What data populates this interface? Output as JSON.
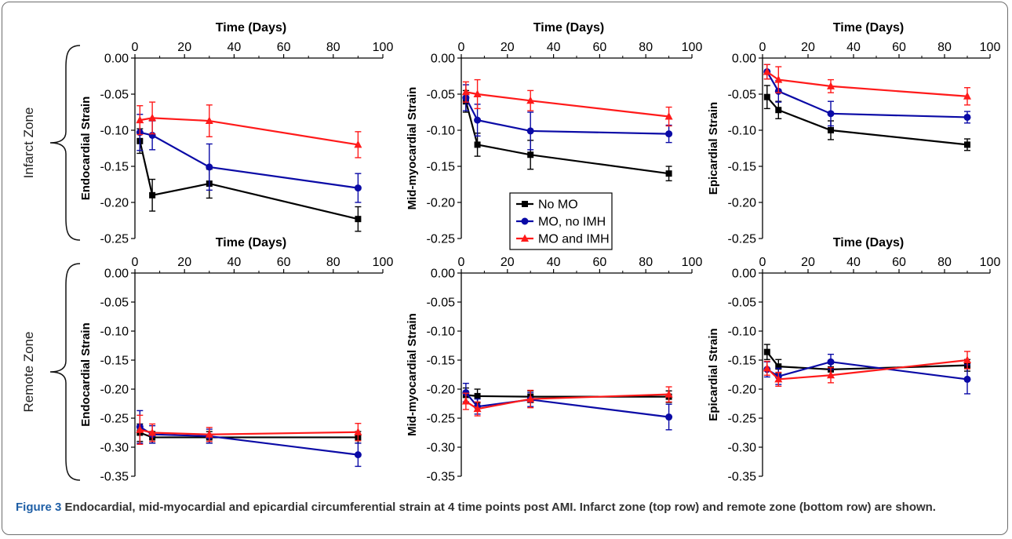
{
  "caption": {
    "label": "Figure 3",
    "text": "Endocardial, mid-myocardial and epicardial circumferential strain at 4 time points post AMI. Infarct zone (top row) and remote zone (bottom row) are shown."
  },
  "zones": [
    "Infarct Zone",
    "Remote Zone"
  ],
  "legend": [
    "No MO",
    "MO, no IMH",
    "MO and IMH"
  ],
  "colors": {
    "No MO": "#000000",
    "MO, no IMH": "#0a0aa6",
    "MO and IMH": "#ff1a1a"
  },
  "chart_data": [
    {
      "type": "line",
      "zone": "Infarct Zone",
      "xlabel": "Time (Days)",
      "ylabel": "Endocardial Strain",
      "xlim": [
        0,
        100
      ],
      "ylim": [
        -0.25,
        0
      ],
      "xticks": [
        "0",
        "20",
        "40",
        "60",
        "80",
        "100"
      ],
      "yticks": [
        "0.00",
        "-0.05",
        "-0.10",
        "-0.15",
        "-0.20",
        "-0.25"
      ],
      "x": [
        2,
        7,
        30,
        90
      ],
      "series": [
        {
          "name": "No MO",
          "marker": "square",
          "values": [
            -0.115,
            -0.19,
            -0.174,
            -0.223
          ],
          "errors": [
            0.017,
            0.022,
            0.02,
            0.017
          ]
        },
        {
          "name": "MO, no IMH",
          "marker": "circle",
          "values": [
            -0.103,
            -0.107,
            -0.151,
            -0.18
          ],
          "errors": [
            0.025,
            0.02,
            0.032,
            0.02
          ]
        },
        {
          "name": "MO and IMH",
          "marker": "triangle",
          "values": [
            -0.086,
            -0.083,
            -0.087,
            -0.12
          ],
          "errors": [
            0.02,
            0.022,
            0.022,
            0.018
          ]
        }
      ]
    },
    {
      "type": "line",
      "zone": "Infarct Zone",
      "xlabel": "Time (Days)",
      "ylabel": "Mid-myocardial Strain",
      "xlim": [
        0,
        100
      ],
      "ylim": [
        -0.25,
        0
      ],
      "xticks": [
        "0",
        "20",
        "40",
        "60",
        "80",
        "100"
      ],
      "yticks": [
        "0.00",
        "-0.05",
        "-0.10",
        "-0.15",
        "-0.20",
        "-0.25"
      ],
      "x": [
        2,
        7,
        30,
        90
      ],
      "series": [
        {
          "name": "No MO",
          "marker": "square",
          "values": [
            -0.06,
            -0.12,
            -0.134,
            -0.16
          ],
          "errors": [
            0.015,
            0.016,
            0.02,
            0.01
          ]
        },
        {
          "name": "MO, no IMH",
          "marker": "circle",
          "values": [
            -0.055,
            -0.086,
            -0.101,
            -0.105
          ],
          "errors": [
            0.018,
            0.022,
            0.026,
            0.012
          ]
        },
        {
          "name": "MO and IMH",
          "marker": "triangle",
          "values": [
            -0.047,
            -0.05,
            -0.059,
            -0.081
          ],
          "errors": [
            0.014,
            0.02,
            0.014,
            0.013
          ]
        }
      ]
    },
    {
      "type": "line",
      "zone": "Infarct Zone",
      "xlabel": "Time (Days)",
      "ylabel": "Epicardial Strain",
      "xlim": [
        0,
        100
      ],
      "ylim": [
        -0.25,
        0
      ],
      "xticks": [
        "0",
        "20",
        "40",
        "60",
        "80",
        "100"
      ],
      "yticks": [
        "0.00",
        "-0.05",
        "-0.10",
        "-0.15",
        "-0.20",
        "-0.25"
      ],
      "x": [
        2,
        7,
        30,
        90
      ],
      "series": [
        {
          "name": "No MO",
          "marker": "square",
          "values": [
            -0.054,
            -0.072,
            -0.1,
            -0.12
          ],
          "errors": [
            0.016,
            0.012,
            0.013,
            0.008
          ]
        },
        {
          "name": "MO, no IMH",
          "marker": "circle",
          "values": [
            -0.019,
            -0.046,
            -0.077,
            -0.082
          ],
          "errors": [
            0.01,
            0.015,
            0.017,
            0.008
          ]
        },
        {
          "name": "MO and IMH",
          "marker": "triangle",
          "values": [
            -0.019,
            -0.03,
            -0.039,
            -0.053
          ],
          "errors": [
            0.01,
            0.018,
            0.009,
            0.012
          ]
        }
      ]
    },
    {
      "type": "line",
      "zone": "Remote Zone",
      "xlabel": "Time (Days)",
      "ylabel": "Endocardial Strain",
      "xlim": [
        0,
        100
      ],
      "ylim": [
        -0.35,
        0
      ],
      "xticks": [
        "0",
        "20",
        "40",
        "60",
        "80",
        "100"
      ],
      "yticks": [
        "0.00",
        "-0.05",
        "-0.10",
        "-0.15",
        "-0.20",
        "-0.25",
        "-0.30",
        "-0.35"
      ],
      "x": [
        2,
        7,
        30,
        90
      ],
      "series": [
        {
          "name": "No MO",
          "marker": "square",
          "values": [
            -0.275,
            -0.283,
            -0.283,
            -0.283
          ],
          "errors": [
            0.015,
            0.01,
            0.01,
            0.01
          ]
        },
        {
          "name": "MO, no IMH",
          "marker": "circle",
          "values": [
            -0.265,
            -0.278,
            -0.281,
            -0.313
          ],
          "errors": [
            0.028,
            0.015,
            0.012,
            0.02
          ]
        },
        {
          "name": "MO and IMH",
          "marker": "triangle",
          "values": [
            -0.27,
            -0.275,
            -0.278,
            -0.274
          ],
          "errors": [
            0.025,
            0.015,
            0.012,
            0.015
          ]
        }
      ]
    },
    {
      "type": "line",
      "zone": "Remote Zone",
      "xlabel": "Time (Days)",
      "ylabel": "Mid-myocardial Strain",
      "xlim": [
        0,
        100
      ],
      "ylim": [
        -0.35,
        0
      ],
      "xticks": [
        "0",
        "20",
        "40",
        "60",
        "80",
        "100"
      ],
      "yticks": [
        "0.00",
        "-0.05",
        "-0.10",
        "-0.15",
        "-0.20",
        "-0.25",
        "-0.30",
        "-0.35"
      ],
      "x": [
        2,
        7,
        30,
        90
      ],
      "series": [
        {
          "name": "No MO",
          "marker": "square",
          "values": [
            -0.21,
            -0.212,
            -0.213,
            -0.213
          ],
          "errors": [
            0.012,
            0.012,
            0.01,
            0.01
          ]
        },
        {
          "name": "MO, no IMH",
          "marker": "circle",
          "values": [
            -0.206,
            -0.23,
            -0.218,
            -0.248
          ],
          "errors": [
            0.016,
            0.013,
            0.012,
            0.022
          ]
        },
        {
          "name": "MO and IMH",
          "marker": "triangle",
          "values": [
            -0.221,
            -0.234,
            -0.217,
            -0.209
          ],
          "errors": [
            0.014,
            0.012,
            0.015,
            0.013
          ]
        }
      ]
    },
    {
      "type": "line",
      "zone": "Remote Zone",
      "xlabel": "Time (Days)",
      "ylabel": "Epicardial Strain",
      "xlim": [
        0,
        100
      ],
      "ylim": [
        -0.35,
        0
      ],
      "xticks": [
        "0",
        "20",
        "40",
        "60",
        "80",
        "100"
      ],
      "yticks": [
        "0.00",
        "-0.05",
        "-0.10",
        "-0.15",
        "-0.20",
        "-0.25",
        "-0.30",
        "-0.35"
      ],
      "x": [
        2,
        7,
        30,
        90
      ],
      "series": [
        {
          "name": "No MO",
          "marker": "square",
          "values": [
            -0.136,
            -0.161,
            -0.166,
            -0.159
          ],
          "errors": [
            0.013,
            0.012,
            0.01,
            0.01
          ]
        },
        {
          "name": "MO, no IMH",
          "marker": "circle",
          "values": [
            -0.166,
            -0.178,
            -0.153,
            -0.183
          ],
          "errors": [
            0.013,
            0.014,
            0.013,
            0.025
          ]
        },
        {
          "name": "MO and IMH",
          "marker": "triangle",
          "values": [
            -0.164,
            -0.183,
            -0.176,
            -0.15
          ],
          "errors": [
            0.012,
            0.012,
            0.013,
            0.015
          ]
        }
      ]
    }
  ]
}
